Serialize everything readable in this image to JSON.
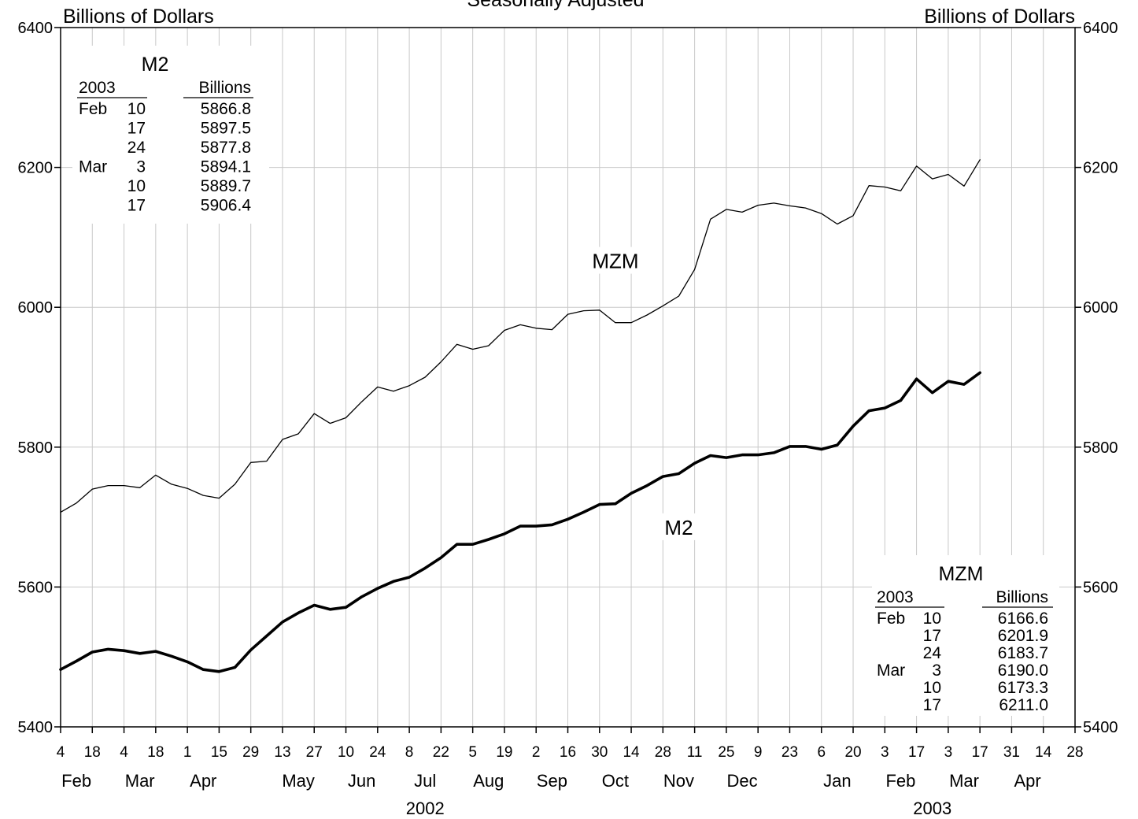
{
  "chart_data": {
    "type": "line",
    "title": "Seasonally Adjusted",
    "ylabel_left": "Billions of Dollars",
    "ylabel_right": "Billions of Dollars",
    "ylim": [
      5400,
      6400
    ],
    "yticks": [
      5400,
      5600,
      5800,
      6000,
      6200,
      6400
    ],
    "grid": true,
    "xlim": [
      "2002-02-04",
      "2003-04-28"
    ],
    "x_tick_days": [
      "4",
      "18",
      "4",
      "18",
      "1",
      "15",
      "29",
      "13",
      "27",
      "10",
      "24",
      "8",
      "22",
      "5",
      "19",
      "2",
      "16",
      "30",
      "14",
      "28",
      "11",
      "25",
      "9",
      "23",
      "6",
      "20",
      "3",
      "17",
      "3",
      "17",
      "31",
      "14",
      "28"
    ],
    "month_labels": [
      {
        "label": "Feb",
        "date": "2002-02-11"
      },
      {
        "label": "Mar",
        "date": "2002-03-11"
      },
      {
        "label": "Apr",
        "date": "2002-04-08"
      },
      {
        "label": "May",
        "date": "2002-05-20"
      },
      {
        "label": "Jun",
        "date": "2002-06-17"
      },
      {
        "label": "Jul",
        "date": "2002-07-15"
      },
      {
        "label": "Aug",
        "date": "2002-08-12"
      },
      {
        "label": "Sep",
        "date": "2002-09-09"
      },
      {
        "label": "Oct",
        "date": "2002-10-07"
      },
      {
        "label": "Nov",
        "date": "2002-11-04"
      },
      {
        "label": "Dec",
        "date": "2002-12-02"
      },
      {
        "label": "Jan",
        "date": "2003-01-13"
      },
      {
        "label": "Feb",
        "date": "2003-02-10"
      },
      {
        "label": "Mar",
        "date": "2003-03-10"
      },
      {
        "label": "Apr",
        "date": "2003-04-07"
      }
    ],
    "year_labels": [
      {
        "label": "2002",
        "date": "2002-07-15"
      },
      {
        "label": "2003",
        "date": "2003-02-24"
      }
    ],
    "series_labels": [
      {
        "label": "MZM",
        "date": "2002-10-07",
        "value": 6066
      },
      {
        "label": "M2",
        "date": "2002-11-04",
        "value": 5685
      }
    ],
    "series": [
      {
        "name": "MZM",
        "start_date": "2002-02-04",
        "step": "week",
        "values": [
          5707,
          5720,
          5740,
          5745,
          5745,
          5742,
          5760,
          5747,
          5741,
          5731,
          5727,
          5747,
          5778,
          5780,
          5811,
          5819,
          5848,
          5834,
          5842,
          5865,
          5886,
          5880,
          5888,
          5900,
          5922,
          5947,
          5940,
          5945,
          5967,
          5975,
          5970,
          5968,
          5990,
          5995,
          5996,
          5978,
          5978,
          5989,
          6002,
          6016,
          6054,
          6126,
          6140,
          6136,
          6146,
          6149,
          6145,
          6142,
          6134,
          6119,
          6131,
          6174,
          6172,
          6166.6,
          6201.9,
          6183.7,
          6190.0,
          6173.3,
          6211.0
        ]
      },
      {
        "name": "M2",
        "start_date": "2002-02-04",
        "step": "week",
        "values": [
          5482,
          5494,
          5507,
          5511,
          5509,
          5505,
          5508,
          5501,
          5493,
          5482,
          5479,
          5485,
          5510,
          5530,
          5550,
          5563,
          5574,
          5568,
          5571,
          5586,
          5598,
          5608,
          5614,
          5627,
          5642,
          5661,
          5661,
          5668,
          5676,
          5687,
          5687,
          5689,
          5697,
          5707,
          5718,
          5719,
          5734,
          5745,
          5758,
          5762,
          5777,
          5788,
          5785,
          5789,
          5789,
          5792,
          5801,
          5801,
          5797,
          5803,
          5830,
          5852,
          5856,
          5866.8,
          5897.5,
          5877.8,
          5894.1,
          5889.7,
          5906.4
        ]
      }
    ]
  },
  "m2_table": {
    "title": "M2",
    "col1_header": "2003",
    "col2_header": "Billions",
    "rows": [
      {
        "month": "Feb",
        "day": "10",
        "value": "5866.8"
      },
      {
        "month": "",
        "day": "17",
        "value": "5897.5"
      },
      {
        "month": "",
        "day": "24",
        "value": "5877.8"
      },
      {
        "month": "Mar",
        "day": "3",
        "value": "5894.1"
      },
      {
        "month": "",
        "day": "10",
        "value": "5889.7"
      },
      {
        "month": "",
        "day": "17",
        "value": "5906.4"
      }
    ]
  },
  "mzm_table": {
    "title": "MZM",
    "col1_header": "2003",
    "col2_header": "Billions",
    "rows": [
      {
        "month": "Feb",
        "day": "10",
        "value": "6166.6"
      },
      {
        "month": "",
        "day": "17",
        "value": "6201.9"
      },
      {
        "month": "",
        "day": "24",
        "value": "6183.7"
      },
      {
        "month": "Mar",
        "day": "3",
        "value": "6190.0"
      },
      {
        "month": "",
        "day": "10",
        "value": "6173.3"
      },
      {
        "month": "",
        "day": "17",
        "value": "6211.0"
      }
    ]
  }
}
